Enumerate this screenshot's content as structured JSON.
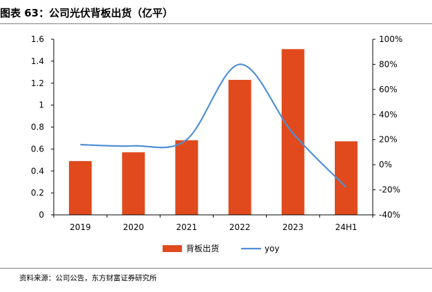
{
  "header": {
    "title": "图表 63：公司光伏背板出货（亿平）"
  },
  "footer": {
    "source": "资料来源：公司公告，东方财富证券研究所"
  },
  "colors": {
    "bar": "#e04a1c",
    "line": "#4f8fd6",
    "axis": "#000000"
  },
  "chart_data": {
    "type": "bar",
    "categories": [
      "2019",
      "2020",
      "2021",
      "2022",
      "2023",
      "24H1"
    ],
    "series": [
      {
        "name": "背板出货",
        "type": "bar",
        "axis": "left",
        "values": [
          0.49,
          0.57,
          0.68,
          1.23,
          1.51,
          0.67
        ]
      },
      {
        "name": "yoy",
        "type": "line",
        "axis": "right",
        "values": [
          16,
          15,
          20,
          80,
          25,
          -18
        ]
      }
    ],
    "y_left": {
      "min": 0,
      "max": 1.6,
      "ticks": [
        0,
        0.2,
        0.4,
        0.6,
        0.8,
        1,
        1.2,
        1.4,
        1.6
      ],
      "tick_labels": [
        "0",
        "0.2",
        "0.4",
        "0.6",
        "0.8",
        "1",
        "1.2",
        "1.4",
        "1.6"
      ]
    },
    "y_right": {
      "min": -40,
      "max": 100,
      "ticks": [
        -40,
        -20,
        0,
        20,
        40,
        60,
        80,
        100
      ],
      "tick_labels": [
        "-40%",
        "-20%",
        "0%",
        "20%",
        "40%",
        "60%",
        "80%",
        "100%"
      ]
    },
    "grid": false,
    "legend": {
      "position": "bottom",
      "entries": [
        "背板出货",
        "yoy"
      ]
    }
  }
}
